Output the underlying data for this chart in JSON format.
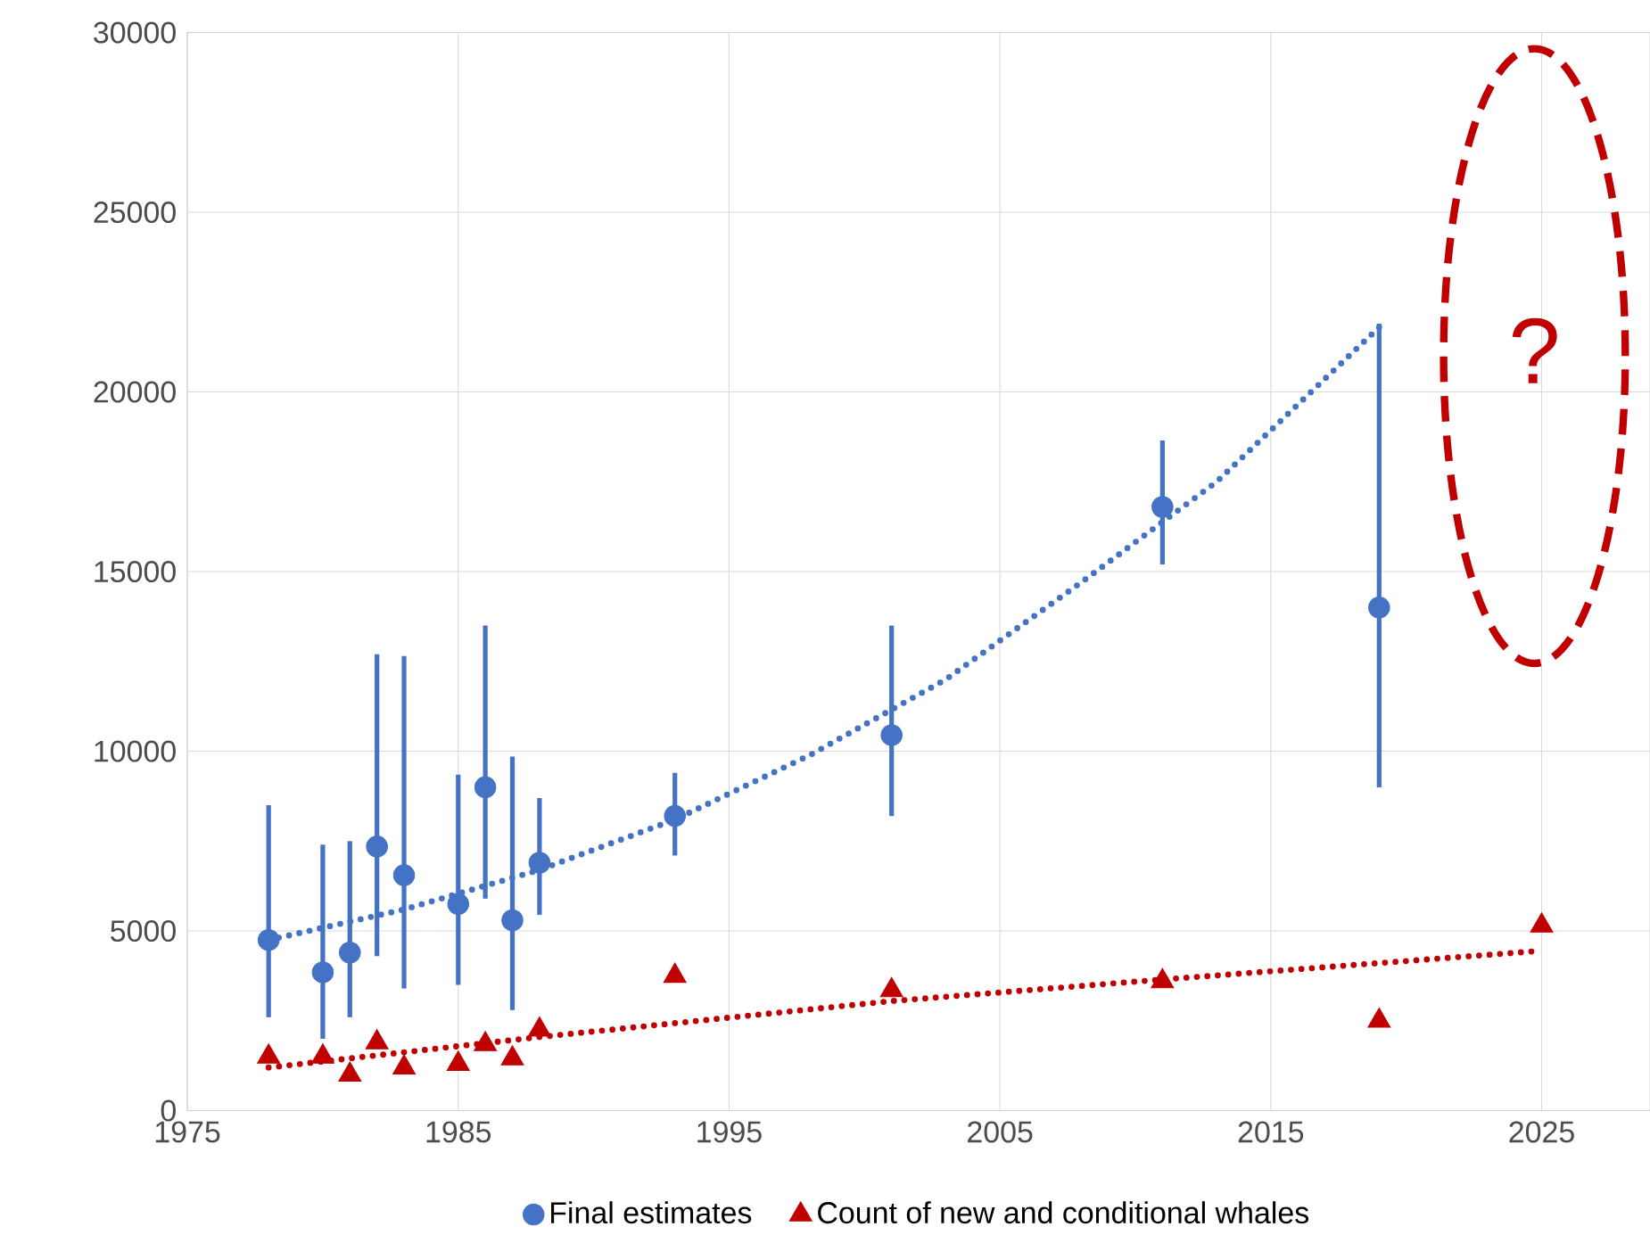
{
  "chart_data": {
    "type": "scatter",
    "xlim": [
      1975,
      2029
    ],
    "ylim": [
      0,
      30000
    ],
    "xticks": [
      1975,
      1985,
      1995,
      2005,
      2015,
      2025
    ],
    "yticks": [
      0,
      5000,
      10000,
      15000,
      20000,
      25000,
      30000
    ],
    "grid": true,
    "legend": "bottom",
    "series": [
      {
        "name": "Final estimates",
        "color": "#4472c4",
        "marker": "circle",
        "x": [
          1978,
          1980,
          1981,
          1982,
          1983,
          1985,
          1986,
          1987,
          1988,
          1993,
          2001,
          2011,
          2019
        ],
        "values": [
          4750,
          3850,
          4400,
          7350,
          6550,
          5750,
          9000,
          5300,
          6900,
          8200,
          10450,
          16800,
          14000
        ],
        "errors": [
          [
            2600,
            8500
          ],
          [
            2000,
            7400
          ],
          [
            2600,
            7500
          ],
          [
            4300,
            12700
          ],
          [
            3400,
            12650
          ],
          [
            3500,
            9350
          ],
          [
            5900,
            13500
          ],
          [
            2800,
            9850
          ],
          [
            5450,
            8700
          ],
          [
            7100,
            9400
          ],
          [
            8200,
            13500
          ],
          [
            15200,
            18650
          ],
          [
            9000,
            21900
          ]
        ]
      },
      {
        "name": "Count of new and conditional whales",
        "color": "#c00000",
        "marker": "triangle",
        "x": [
          1978,
          1980,
          1981,
          1982,
          1983,
          1985,
          1986,
          1987,
          1988,
          1993,
          2001,
          2011,
          2019,
          2025
        ],
        "values": [
          1500,
          1500,
          1000,
          1900,
          1200,
          1300,
          1850,
          1450,
          2250,
          3750,
          3350,
          3600,
          2500,
          5150
        ]
      },
      {
        "type": "line",
        "line_style": "dotted",
        "marker": "none",
        "color": "#4472c4",
        "x": [
          1978,
          1983,
          1988,
          1993,
          1998,
          2003,
          2008,
          2013,
          2019
        ],
        "values": [
          4750,
          5600,
          6700,
          8100,
          9900,
          12000,
          14700,
          17500,
          21800
        ]
      },
      {
        "type": "line",
        "line_style": "dotted",
        "marker": "none",
        "color": "#c00000",
        "x": [
          1978,
          1988,
          2001,
          2011,
          2025
        ],
        "values": [
          1200,
          2050,
          3050,
          3650,
          4450
        ]
      }
    ],
    "annotations": [
      "?"
    ]
  }
}
